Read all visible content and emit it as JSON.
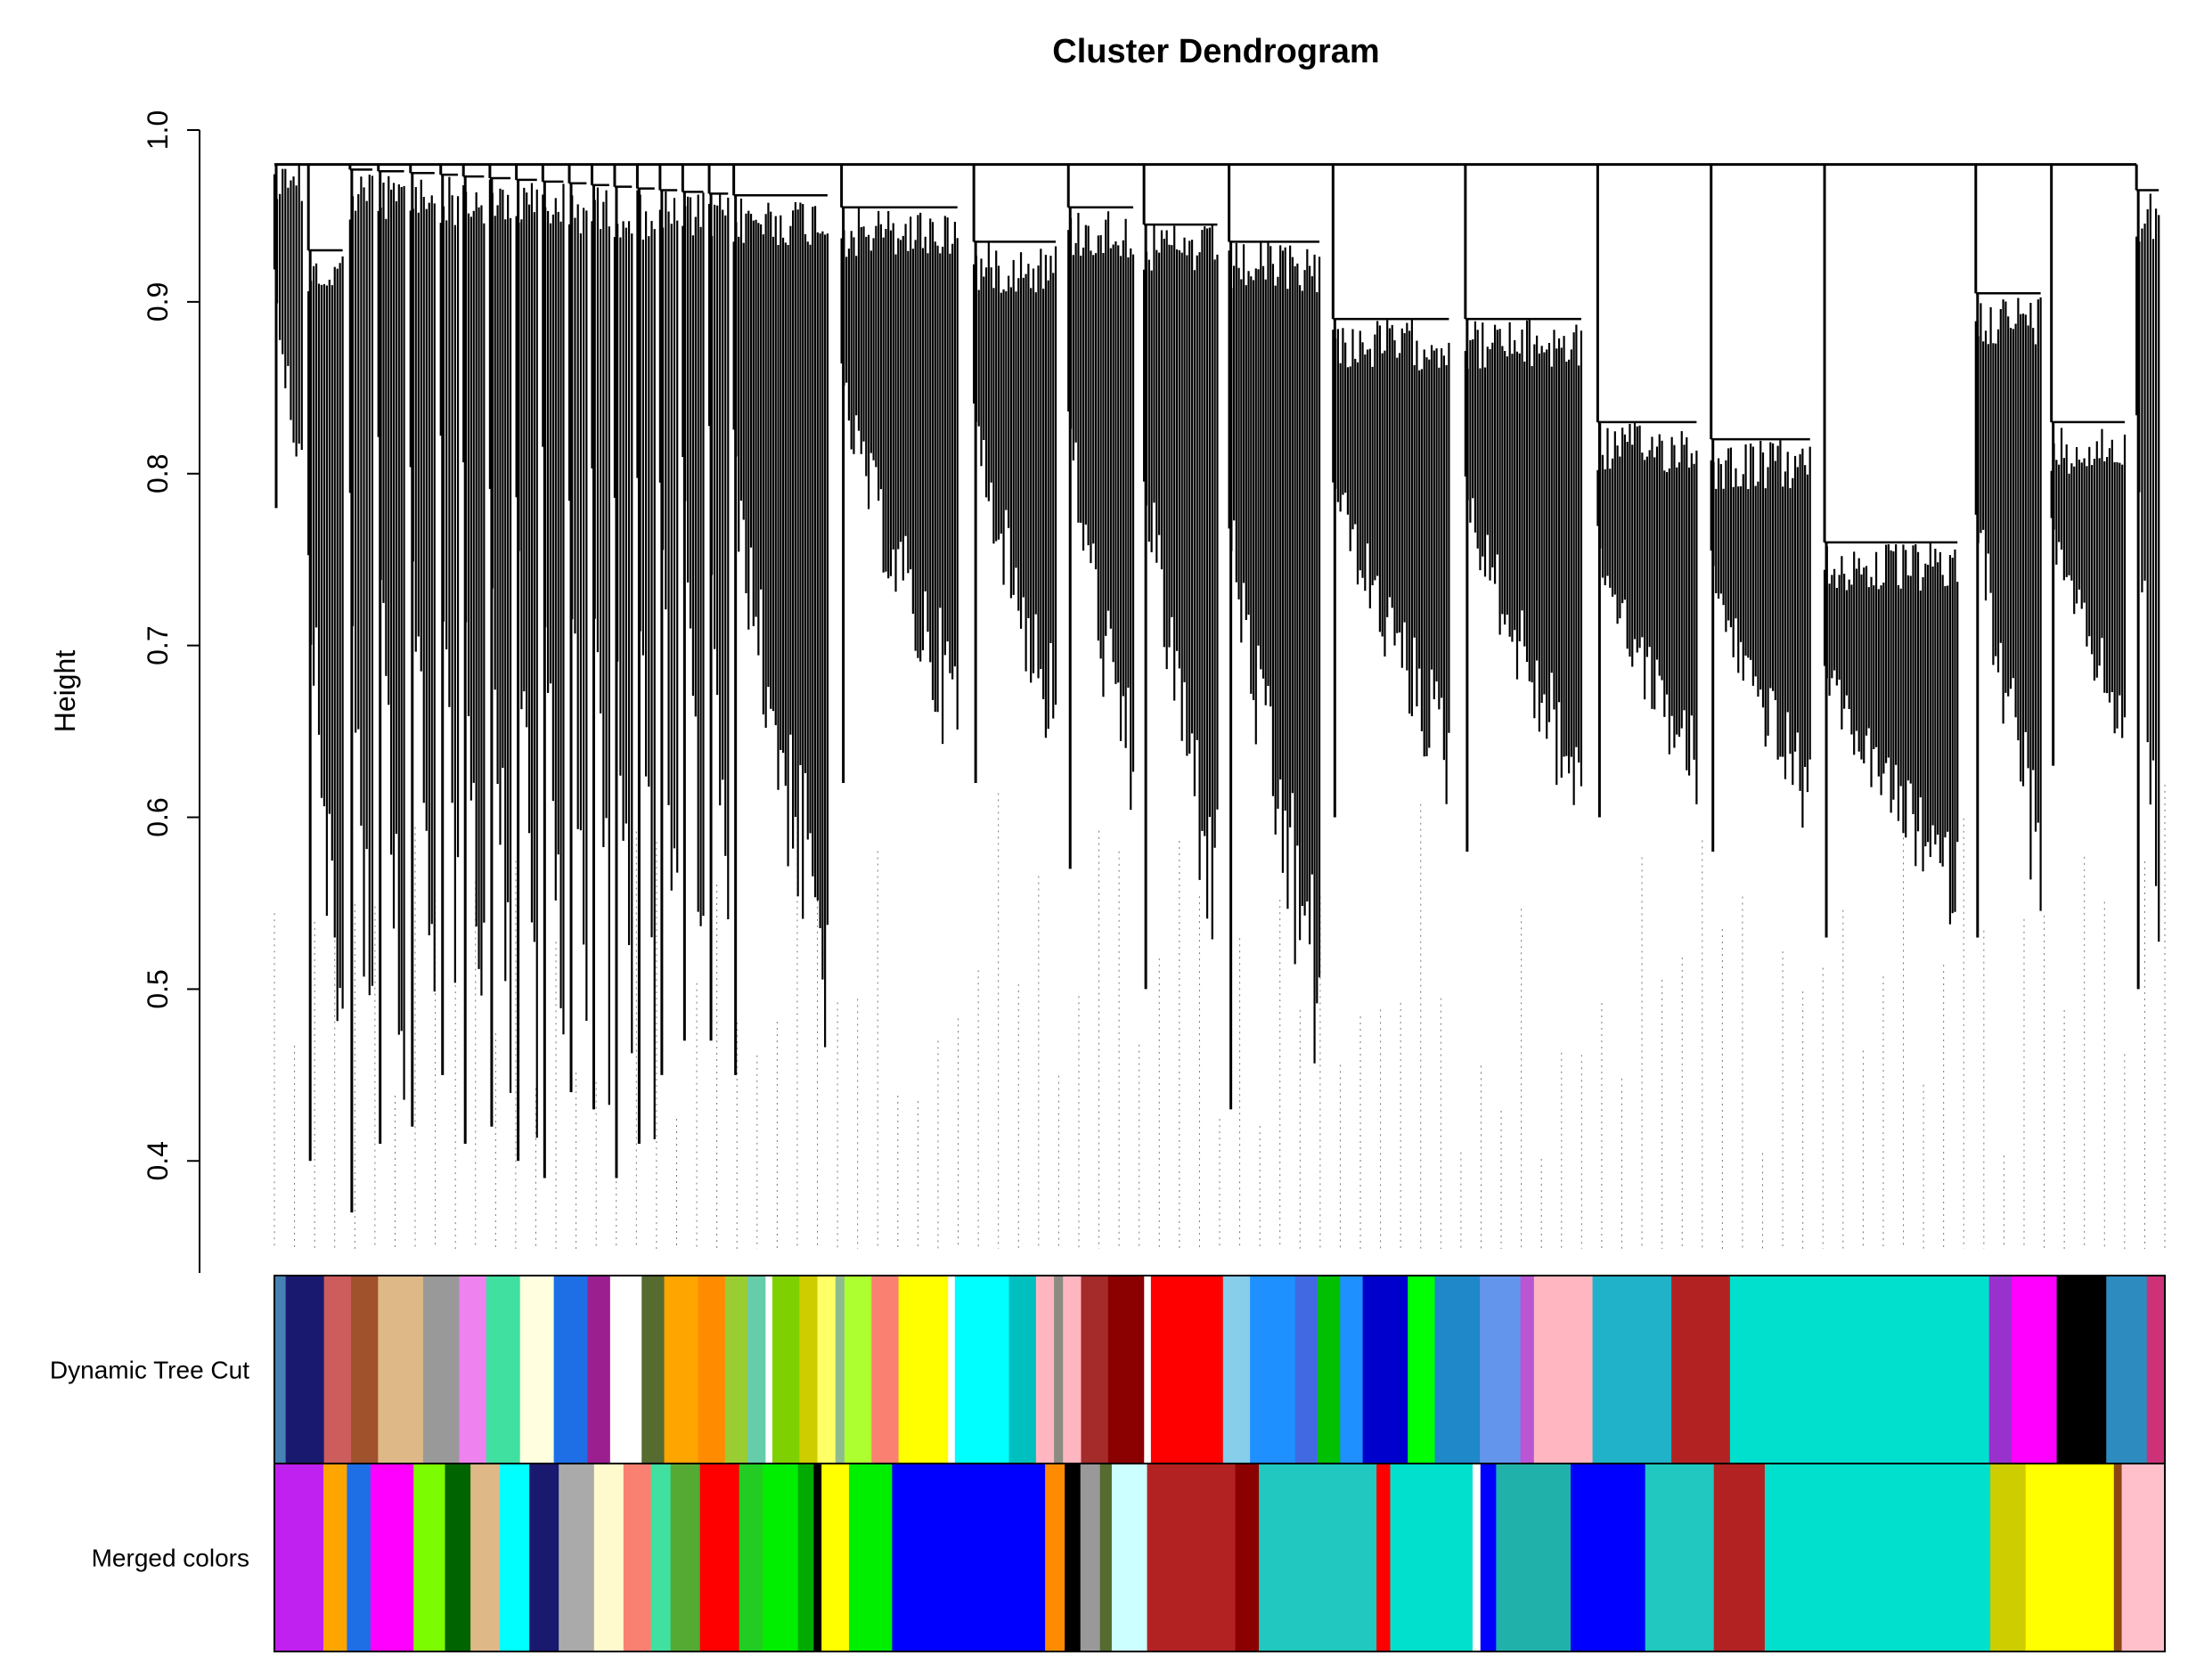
{
  "chart_data": {
    "type": "dendrogram",
    "title": "Cluster Dendrogram",
    "xlabel": "",
    "ylabel": "Height",
    "ylim": [
      0.34,
      1.0
    ],
    "yticks": [
      0.4,
      0.5,
      0.6,
      0.7,
      0.8,
      0.9,
      1.0
    ],
    "ytick_labels": [
      "0.4",
      "0.5",
      "0.6",
      "0.7",
      "0.8",
      "0.9",
      "1.0"
    ],
    "grid": false,
    "top_merge_height": 0.98,
    "branches": [
      {
        "pos": 0.0,
        "merge": 0.98,
        "min": 0.78
      },
      {
        "pos": 0.018,
        "merge": 0.93,
        "min": 0.4
      },
      {
        "pos": 0.04,
        "merge": 0.977,
        "min": 0.37
      },
      {
        "pos": 0.055,
        "merge": 0.976,
        "min": 0.41
      },
      {
        "pos": 0.072,
        "merge": 0.975,
        "min": 0.42
      },
      {
        "pos": 0.088,
        "merge": 0.974,
        "min": 0.45
      },
      {
        "pos": 0.1,
        "merge": 0.973,
        "min": 0.41
      },
      {
        "pos": 0.114,
        "merge": 0.972,
        "min": 0.42
      },
      {
        "pos": 0.128,
        "merge": 0.971,
        "min": 0.4
      },
      {
        "pos": 0.142,
        "merge": 0.97,
        "min": 0.39
      },
      {
        "pos": 0.156,
        "merge": 0.969,
        "min": 0.44
      },
      {
        "pos": 0.168,
        "merge": 0.968,
        "min": 0.43
      },
      {
        "pos": 0.18,
        "merge": 0.967,
        "min": 0.39
      },
      {
        "pos": 0.192,
        "merge": 0.966,
        "min": 0.41
      },
      {
        "pos": 0.204,
        "merge": 0.965,
        "min": 0.45
      },
      {
        "pos": 0.216,
        "merge": 0.964,
        "min": 0.47
      },
      {
        "pos": 0.23,
        "merge": 0.963,
        "min": 0.47
      },
      {
        "pos": 0.243,
        "merge": 0.962,
        "min": 0.45
      },
      {
        "pos": 0.3,
        "merge": 0.955,
        "min": 0.62
      },
      {
        "pos": 0.37,
        "merge": 0.935,
        "min": 0.62
      },
      {
        "pos": 0.42,
        "merge": 0.955,
        "min": 0.57
      },
      {
        "pos": 0.46,
        "merge": 0.945,
        "min": 0.5
      },
      {
        "pos": 0.505,
        "merge": 0.935,
        "min": 0.43
      },
      {
        "pos": 0.56,
        "merge": 0.89,
        "min": 0.6
      },
      {
        "pos": 0.63,
        "merge": 0.89,
        "min": 0.58
      },
      {
        "pos": 0.7,
        "merge": 0.83,
        "min": 0.6
      },
      {
        "pos": 0.76,
        "merge": 0.82,
        "min": 0.58
      },
      {
        "pos": 0.82,
        "merge": 0.76,
        "min": 0.53
      },
      {
        "pos": 0.9,
        "merge": 0.905,
        "min": 0.53
      },
      {
        "pos": 0.94,
        "merge": 0.83,
        "min": 0.63
      },
      {
        "pos": 0.985,
        "merge": 0.965,
        "min": 0.5
      }
    ],
    "color_rows": [
      {
        "label": "Dynamic Tree Cut",
        "segments": [
          [
            "#4682b4",
            0.005
          ],
          [
            "#191970",
            0.017
          ],
          [
            "#cd5c5c",
            0.012
          ],
          [
            "#a0522d",
            0.012
          ],
          [
            "#deb887",
            0.02
          ],
          [
            "#999999",
            0.016
          ],
          [
            "#ee82ee",
            0.012
          ],
          [
            "#40e0a0",
            0.015
          ],
          [
            "#ffffe0",
            0.015
          ],
          [
            "#1e6ee6",
            0.015
          ],
          [
            "#9b1f8f",
            0.01
          ],
          [
            "#ffffff",
            0.014
          ],
          [
            "#556b2f",
            0.01
          ],
          [
            "#ffa500",
            0.015
          ],
          [
            "#ff8c00",
            0.012
          ],
          [
            "#9acd32",
            0.01
          ],
          [
            "#66cdaa",
            0.008
          ],
          [
            "#ffffff",
            0.003
          ],
          [
            "#7fd000",
            0.012
          ],
          [
            "#cdcd00",
            0.008
          ],
          [
            "#ffff66",
            0.008
          ],
          [
            "#8fbc8f",
            0.004
          ],
          [
            "#adff2f",
            0.012
          ],
          [
            "#fa8072",
            0.012
          ],
          [
            "#ffff00",
            0.022
          ],
          [
            "#ffffff",
            0.003
          ],
          [
            "#00ffff",
            0.024
          ],
          [
            "#00bfbf",
            0.012
          ],
          [
            "#ffb6c1",
            0.008
          ],
          [
            "#8b8b83",
            0.004
          ],
          [
            "#ffb6c1",
            0.008
          ],
          [
            "#a52a2a",
            0.012
          ],
          [
            "#8b0000",
            0.016
          ],
          [
            "#ffffff",
            0.003
          ],
          [
            "#ff0000",
            0.032
          ],
          [
            "#87ceeb",
            0.012
          ],
          [
            "#1e90ff",
            0.02
          ],
          [
            "#4169e1",
            0.01
          ],
          [
            "#00c000",
            0.01
          ],
          [
            "#1e90ff",
            0.01
          ],
          [
            "#0000cd",
            0.02
          ],
          [
            "#00ff00",
            0.012
          ],
          [
            "#1e88c8",
            0.02
          ],
          [
            "#6495ed",
            0.018
          ],
          [
            "#ba55d3",
            0.006
          ],
          [
            "#ffb6c1",
            0.026
          ],
          [
            "#20b2c8",
            0.035
          ],
          [
            "#b22222",
            0.026
          ],
          [
            "#00e0cc",
            0.115
          ],
          [
            "#9932cc",
            0.01
          ],
          [
            "#ff00ff",
            0.02
          ],
          [
            "#000000",
            0.022
          ],
          [
            "#2e8bc0",
            0.018
          ],
          [
            "#cd3278",
            0.008
          ]
        ]
      },
      {
        "label": "Merged colors",
        "segments": [
          [
            "#c020f0",
            0.025
          ],
          [
            "#ffa500",
            0.012
          ],
          [
            "#1e6ee6",
            0.012
          ],
          [
            "#ff00ff",
            0.022
          ],
          [
            "#7cfc00",
            0.016
          ],
          [
            "#006400",
            0.013
          ],
          [
            "#deb887",
            0.015
          ],
          [
            "#00ffff",
            0.015
          ],
          [
            "#191970",
            0.015
          ],
          [
            "#aaaaaa",
            0.018
          ],
          [
            "#fffacd",
            0.015
          ],
          [
            "#fa8072",
            0.014
          ],
          [
            "#40e0a0",
            0.01
          ],
          [
            "#55aa33",
            0.015
          ],
          [
            "#ff0000",
            0.02
          ],
          [
            "#22cc22",
            0.012
          ],
          [
            "#00ee00",
            0.018
          ],
          [
            "#00aa00",
            0.008
          ],
          [
            "#000000",
            0.004
          ],
          [
            "#ffff00",
            0.014
          ],
          [
            "#00ee00",
            0.022
          ],
          [
            "#0000ff",
            0.078
          ],
          [
            "#ff8c00",
            0.01
          ],
          [
            "#000000",
            0.008
          ],
          [
            "#999999",
            0.01
          ],
          [
            "#556b2f",
            0.006
          ],
          [
            "#ccffff",
            0.018
          ],
          [
            "#b22222",
            0.045
          ],
          [
            "#8b0000",
            0.012
          ],
          [
            "#20c8c0",
            0.06
          ],
          [
            "#ff0000",
            0.007
          ],
          [
            "#00e0cc",
            0.042
          ],
          [
            "#ffffff",
            0.004
          ],
          [
            "#0000ff",
            0.008
          ],
          [
            "#20b2aa",
            0.038
          ],
          [
            "#0000ff",
            0.038
          ],
          [
            "#20c8c0",
            0.035
          ],
          [
            "#b22222",
            0.026
          ],
          [
            "#00e0cc",
            0.115
          ],
          [
            "#cdcd00",
            0.018
          ],
          [
            "#ffff00",
            0.045
          ],
          [
            "#8b4513",
            0.004
          ],
          [
            "#ffc0cb",
            0.022
          ]
        ]
      }
    ]
  }
}
